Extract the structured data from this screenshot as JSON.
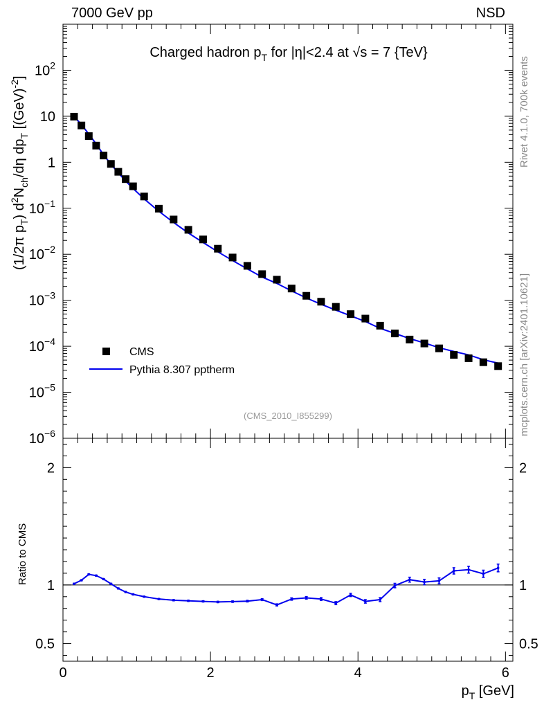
{
  "header": {
    "left": "7000 GeV pp",
    "right": "NSD"
  },
  "side_labels": {
    "rivet": "Rivet 4.1.0,  700k events",
    "mcplots": "mcplots.cern.ch [arXiv:2401.10621]"
  },
  "chart_data": [
    {
      "type": "scatter",
      "title": "Charged hadron p_T for |η|<2.4 at √s = 7 {TeV}",
      "title_parts": {
        "a": "Charged hadron p",
        "sub_T": "T",
        "b": " for |η|<2.4 at ",
        "sqrt": "√",
        "c": "s = 7 {TeV}"
      },
      "ylabel": "(1/2π p_T) d²N_ch/dη dp_T [(GeV)⁻²]",
      "ylabel_parts": {
        "p1": "(1/2π p",
        "s1": "T",
        "p2": ") d",
        "sup2": "2",
        "p3": "N",
        "s3": "ch",
        "p4": "/dη  dp",
        "s4": "T",
        "p5": " [(GeV)",
        "sup5": "-2",
        "p6": "]"
      },
      "yscale": "log",
      "ylim": [
        1e-06,
        1000
      ],
      "xlim": [
        0,
        6.1
      ],
      "y_tick_labels": [
        {
          "value": 1e-06,
          "base": "10",
          "exp": "−6"
        },
        {
          "value": 1e-05,
          "base": "10",
          "exp": "−5"
        },
        {
          "value": 0.0001,
          "base": "10",
          "exp": "−4"
        },
        {
          "value": 0.001,
          "base": "10",
          "exp": "−3"
        },
        {
          "value": 0.01,
          "base": "10",
          "exp": "−2"
        },
        {
          "value": 0.1,
          "base": "10",
          "exp": "−1"
        },
        {
          "value": 1,
          "base": "1",
          "exp": ""
        },
        {
          "value": 10,
          "base": "10",
          "exp": ""
        },
        {
          "value": 100,
          "base": "10",
          "exp": "2"
        }
      ],
      "legend": {
        "position": "lower-left",
        "entries": [
          {
            "label": "CMS",
            "marker": "square",
            "color": "#000000"
          },
          {
            "label": "Pythia 8.307 pptherm",
            "marker": "line",
            "color": "#0000ee"
          }
        ]
      },
      "annotation": "(CMS_2010_I855299)",
      "series": [
        {
          "name": "CMS",
          "color": "#000000",
          "x": [
            0.15,
            0.25,
            0.35,
            0.45,
            0.55,
            0.65,
            0.75,
            0.85,
            0.95,
            1.1,
            1.3,
            1.5,
            1.7,
            1.9,
            2.1,
            2.3,
            2.5,
            2.7,
            2.9,
            3.1,
            3.3,
            3.5,
            3.7,
            3.9,
            4.1,
            4.3,
            4.5,
            4.7,
            4.9,
            5.1,
            5.3,
            5.5,
            5.7,
            5.9
          ],
          "y": [
            9.8,
            6.3,
            3.7,
            2.3,
            1.4,
            0.92,
            0.62,
            0.43,
            0.3,
            0.18,
            0.098,
            0.057,
            0.034,
            0.021,
            0.0132,
            0.0085,
            0.0056,
            0.0037,
            0.0028,
            0.0018,
            0.00125,
            0.00093,
            0.00072,
            0.0005,
            0.0004,
            0.00028,
            0.00019,
            0.00014,
            0.000115,
            9e-05,
            6.5e-05,
            5.5e-05,
            4.5e-05,
            3.7e-05
          ]
        },
        {
          "name": "Pythia 8.307 pptherm",
          "color": "#0000ee",
          "x": [
            0.15,
            0.25,
            0.35,
            0.45,
            0.55,
            0.65,
            0.75,
            0.85,
            0.95,
            1.1,
            1.3,
            1.5,
            1.7,
            1.9,
            2.1,
            2.3,
            2.5,
            2.7,
            2.9,
            3.1,
            3.3,
            3.5,
            3.7,
            3.9,
            4.1,
            4.3,
            4.5,
            4.7,
            4.9,
            5.1,
            5.3,
            5.5,
            5.7,
            5.9
          ],
          "y": [
            9.9,
            6.6,
            4.1,
            2.5,
            1.45,
            0.91,
            0.59,
            0.39,
            0.27,
            0.16,
            0.086,
            0.049,
            0.029,
            0.018,
            0.0113,
            0.0073,
            0.0048,
            0.0032,
            0.00232,
            0.0016,
            0.00112,
            0.00082,
            0.00061,
            0.00046,
            0.000345,
            0.000245,
            0.00019,
            0.000147,
            0.000118,
            9.3e-05,
            7.7e-05,
            6.5e-05,
            5.1e-05,
            4.3e-05
          ]
        }
      ]
    },
    {
      "type": "line",
      "ylabel": "Ratio to CMS",
      "xlabel": "p_T [GeV]",
      "xlabel_parts": {
        "a": "p",
        "sub": "T",
        "b": " [GeV]"
      },
      "ylim": [
        0.35,
        2.25
      ],
      "xlim": [
        0,
        6.1
      ],
      "x_tick_labels": [
        "0",
        "2",
        "4",
        "6"
      ],
      "y_tick_labels": [
        "0.5",
        "1",
        "2"
      ],
      "reference_line": 1.0,
      "series": [
        {
          "name": "Pythia 8.307 pptherm / CMS",
          "color": "#0000ee",
          "x": [
            0.15,
            0.25,
            0.35,
            0.45,
            0.55,
            0.65,
            0.75,
            0.85,
            0.95,
            1.1,
            1.3,
            1.5,
            1.7,
            1.9,
            2.1,
            2.3,
            2.5,
            2.7,
            2.9,
            3.1,
            3.3,
            3.5,
            3.7,
            3.9,
            4.1,
            4.3,
            4.5,
            4.7,
            4.9,
            5.1,
            5.3,
            5.5,
            5.7,
            5.9
          ],
          "y": [
            1.01,
            1.04,
            1.09,
            1.08,
            1.05,
            1.01,
            0.97,
            0.94,
            0.92,
            0.9,
            0.88,
            0.87,
            0.865,
            0.86,
            0.855,
            0.858,
            0.862,
            0.875,
            0.83,
            0.88,
            0.89,
            0.88,
            0.845,
            0.915,
            0.86,
            0.875,
            0.995,
            1.045,
            1.025,
            1.035,
            1.12,
            1.13,
            1.095,
            1.145
          ],
          "err": [
            0.004,
            0.004,
            0.004,
            0.004,
            0.004,
            0.004,
            0.004,
            0.004,
            0.004,
            0.004,
            0.004,
            0.005,
            0.005,
            0.005,
            0.006,
            0.006,
            0.007,
            0.008,
            0.009,
            0.01,
            0.011,
            0.012,
            0.013,
            0.014,
            0.015,
            0.017,
            0.019,
            0.021,
            0.023,
            0.025,
            0.027,
            0.029,
            0.031,
            0.033
          ]
        }
      ]
    }
  ]
}
